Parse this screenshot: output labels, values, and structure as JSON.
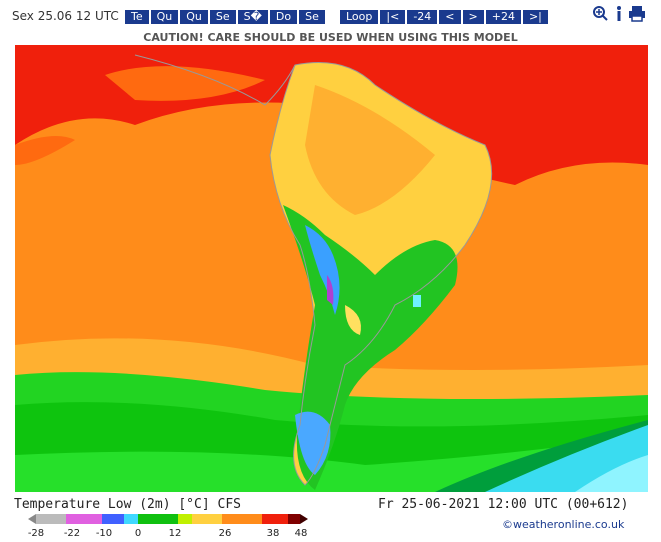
{
  "header": {
    "date": "Sex 25.06 12 UTC",
    "days": [
      "Te",
      "Qu",
      "Qu",
      "Se",
      "S�",
      "Do",
      "Se"
    ],
    "nav": [
      "Loop",
      "|<",
      "-24",
      "<",
      ">",
      "+24",
      ">|"
    ]
  },
  "caution": "CAUTION! CARE SHOULD BE USED WHEN USING THIS MODEL",
  "footer": {
    "title": "Temperature Low (2m) [°C] CFS",
    "valid": "Fr 25-06-2021 12:00 UTC (00+612)",
    "credit": "©weatheronline.co.uk"
  },
  "scale": {
    "labels": [
      -28,
      -22,
      -10,
      0,
      12,
      26,
      38,
      48
    ]
  }
}
